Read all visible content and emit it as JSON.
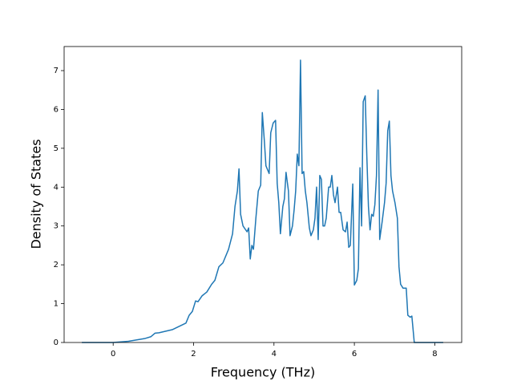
{
  "chart_data": {
    "type": "line",
    "xlabel": "Frequency (THz)",
    "ylabel": "Density of States",
    "x": [
      -0.78,
      0,
      0.38,
      0.78,
      0.94,
      1.04,
      1.14,
      1.47,
      1.81,
      1.89,
      1.97,
      2.05,
      2.11,
      2.21,
      2.33,
      2.45,
      2.53,
      2.63,
      2.73,
      2.87,
      2.97,
      3.03,
      3.09,
      3.13,
      3.17,
      3.23,
      3.33,
      3.37,
      3.41,
      3.45,
      3.49,
      3.55,
      3.61,
      3.67,
      3.71,
      3.76,
      3.8,
      3.88,
      3.92,
      3.98,
      4.04,
      4.08,
      4.12,
      4.16,
      4.22,
      4.26,
      4.3,
      4.36,
      4.4,
      4.46,
      4.5,
      4.54,
      4.58,
      4.62,
      4.66,
      4.7,
      4.74,
      4.78,
      4.82,
      4.88,
      4.92,
      4.98,
      5.02,
      5.06,
      5.1,
      5.14,
      5.18,
      5.22,
      5.26,
      5.3,
      5.36,
      5.4,
      5.44,
      5.48,
      5.52,
      5.58,
      5.62,
      5.66,
      5.72,
      5.78,
      5.82,
      5.86,
      5.9,
      5.96,
      6.0,
      6.06,
      6.1,
      6.14,
      6.18,
      6.22,
      6.27,
      6.31,
      6.35,
      6.39,
      6.43,
      6.47,
      6.51,
      6.55,
      6.59,
      6.63,
      6.69,
      6.75,
      6.79,
      6.83,
      6.87,
      6.91,
      6.95,
      7.01,
      7.07,
      7.11,
      7.15,
      7.21,
      7.29,
      7.33,
      7.39,
      7.43,
      7.49,
      8.21
    ],
    "series": [
      {
        "color": "#1f77b4",
        "values": [
          0,
          0,
          0.03,
          0.1,
          0.15,
          0.24,
          0.25,
          0.33,
          0.5,
          0.7,
          0.8,
          1.07,
          1.05,
          1.2,
          1.3,
          1.5,
          1.6,
          1.95,
          2.05,
          2.4,
          2.8,
          3.5,
          3.9,
          4.47,
          3.3,
          3.0,
          2.85,
          2.95,
          2.15,
          2.5,
          2.4,
          3.2,
          3.9,
          4.05,
          5.92,
          5.2,
          4.55,
          4.35,
          5.4,
          5.65,
          5.72,
          4.1,
          3.6,
          2.8,
          3.5,
          3.7,
          4.38,
          3.9,
          2.75,
          3.0,
          3.4,
          3.9,
          4.85,
          4.55,
          7.27,
          4.35,
          4.4,
          3.9,
          3.6,
          2.95,
          2.75,
          2.9,
          3.2,
          4.0,
          2.65,
          4.3,
          4.2,
          3.0,
          3.0,
          3.2,
          4.0,
          4.0,
          4.3,
          3.8,
          3.6,
          4.0,
          3.35,
          3.35,
          2.9,
          2.85,
          3.1,
          2.45,
          2.5,
          4.08,
          1.48,
          1.6,
          1.9,
          4.5,
          3.0,
          6.2,
          6.35,
          4.8,
          3.5,
          2.9,
          3.3,
          3.25,
          3.55,
          4.3,
          6.5,
          2.65,
          3.1,
          3.6,
          4.1,
          5.45,
          5.7,
          4.3,
          3.9,
          3.6,
          3.2,
          1.95,
          1.5,
          1.4,
          1.4,
          0.7,
          0.65,
          0.68,
          0,
          0
        ]
      }
    ],
    "xlim": [
      -1.22,
      8.67
    ],
    "xticks": [
      0,
      2,
      4,
      6,
      8
    ],
    "ylim": [
      0,
      7.62
    ],
    "yticks": [
      0,
      1,
      2,
      3,
      4,
      5,
      6,
      7
    ]
  }
}
